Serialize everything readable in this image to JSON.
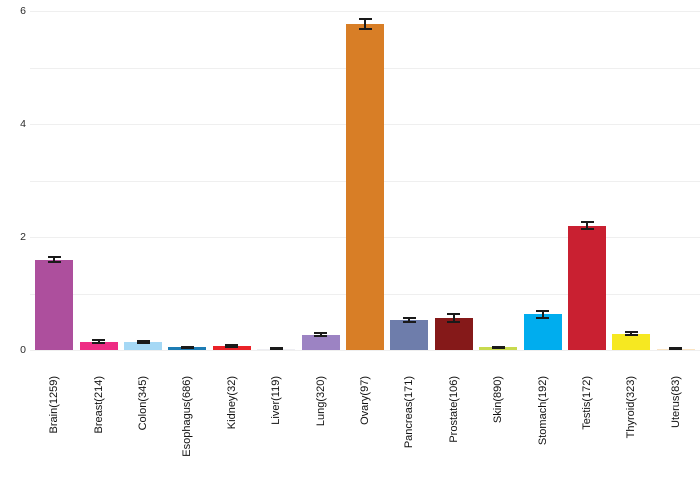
{
  "chart_data": {
    "type": "bar",
    "title": "",
    "xlabel": "",
    "ylabel": "",
    "ylim": [
      0,
      6
    ],
    "yticks": [
      0,
      2,
      4,
      6
    ],
    "gridline_values": [
      0,
      1,
      2,
      3,
      4,
      5,
      6
    ],
    "grid": true,
    "legend": false,
    "categories": [
      "Brain(1259)",
      "Breast(214)",
      "Colon(345)",
      "Esophagus(686)",
      "Kidney(32)",
      "Liver(119)",
      "Lung(320)",
      "Ovary(97)",
      "Pancreas(171)",
      "Prostate(106)",
      "Skin(890)",
      "Stomach(192)",
      "Testis(172)",
      "Thyroid(323)",
      "Uterus(83)"
    ],
    "values": [
      1.6,
      0.15,
      0.14,
      0.05,
      0.07,
      0.02,
      0.27,
      5.77,
      0.53,
      0.56,
      0.05,
      0.63,
      2.2,
      0.29,
      0.02
    ],
    "errors": [
      0.05,
      0.02,
      0.02,
      0.01,
      0.02,
      0.01,
      0.03,
      0.09,
      0.04,
      0.07,
      0.01,
      0.06,
      0.06,
      0.03,
      0.01
    ],
    "bar_colors": [
      "#ad4f9d",
      "#ee2c84",
      "#a5d8f5",
      "#1d7cb4",
      "#ea2228",
      "#eeeef2",
      "#9c83c3",
      "#d87e26",
      "#6e7dab",
      "#851919",
      "#c8da4e",
      "#00adee",
      "#c92031",
      "#f6e821",
      "#fae3c2"
    ]
  },
  "style": {
    "grid_color": "#efefef",
    "error_bar_color": "#1a1a1a",
    "tick_label_color": "#2b2b2b",
    "category_label_color": "#111111",
    "background": "#ffffff"
  }
}
